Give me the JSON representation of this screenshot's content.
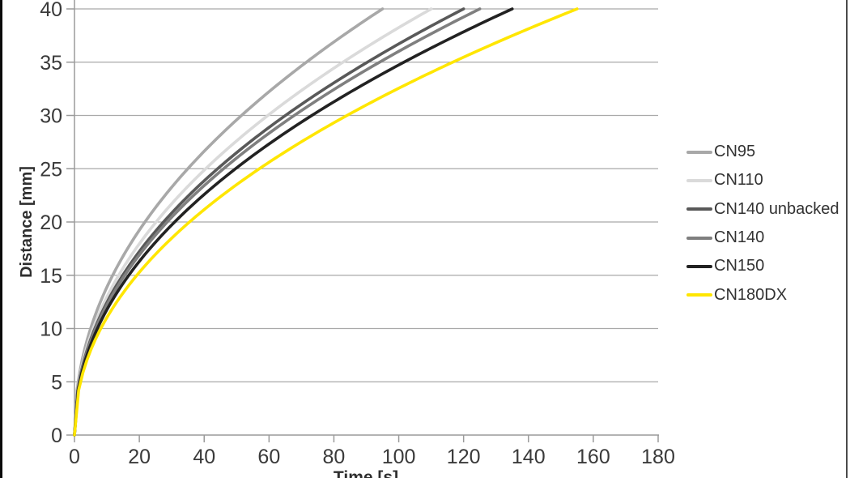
{
  "chart_data": {
    "type": "line",
    "title": "",
    "xlabel": "Time [s]",
    "ylabel": "Distance [mm]",
    "xlim": [
      0,
      180
    ],
    "ylim": [
      0,
      40
    ],
    "x_ticks": [
      0,
      20,
      40,
      60,
      80,
      100,
      120,
      140,
      160,
      180
    ],
    "y_ticks": [
      0,
      5,
      10,
      15,
      20,
      25,
      30,
      35,
      40
    ],
    "grid": "horizontal-only",
    "legend_position": "right-outside",
    "curve_exponent": 0.47,
    "distances_mm": [
      0,
      5,
      10,
      15,
      20,
      25,
      30,
      35,
      40
    ],
    "series": [
      {
        "name": "CN95",
        "color": "#a8a8a8",
        "end_time_s": 95,
        "times_at_distance_s": [
          0,
          1.1,
          5.0,
          11.8,
          21.7,
          35.0,
          51.5,
          71.5,
          95
        ]
      },
      {
        "name": "CN110",
        "color": "#dadada",
        "end_time_s": 110,
        "times_at_distance_s": [
          0,
          1.3,
          5.8,
          13.6,
          25.2,
          40.5,
          59.6,
          82.8,
          110
        ]
      },
      {
        "name": "CN140 unbacked",
        "color": "#595959",
        "end_time_s": 120,
        "times_at_distance_s": [
          0,
          1.4,
          6.3,
          14.9,
          27.5,
          44.1,
          65.0,
          90.3,
          120
        ]
      },
      {
        "name": "CN140",
        "color": "#7f7f7f",
        "end_time_s": 125,
        "times_at_distance_s": [
          0,
          1.5,
          6.5,
          15.5,
          28.6,
          46.0,
          67.7,
          94.1,
          125
        ]
      },
      {
        "name": "CN150",
        "color": "#222222",
        "end_time_s": 135,
        "times_at_distance_s": [
          0,
          1.6,
          7.1,
          16.7,
          30.9,
          49.7,
          73.1,
          101.6,
          135
        ]
      },
      {
        "name": "CN180DX",
        "color": "#ffe600",
        "end_time_s": 155,
        "times_at_distance_s": [
          0,
          1.9,
          8.1,
          19.2,
          35.5,
          57.0,
          83.9,
          116.7,
          155
        ]
      }
    ],
    "axis_color": "#9a9a9a",
    "gridline_color": "#a9a9a9",
    "tick_label_color": "#3a3a3a"
  }
}
